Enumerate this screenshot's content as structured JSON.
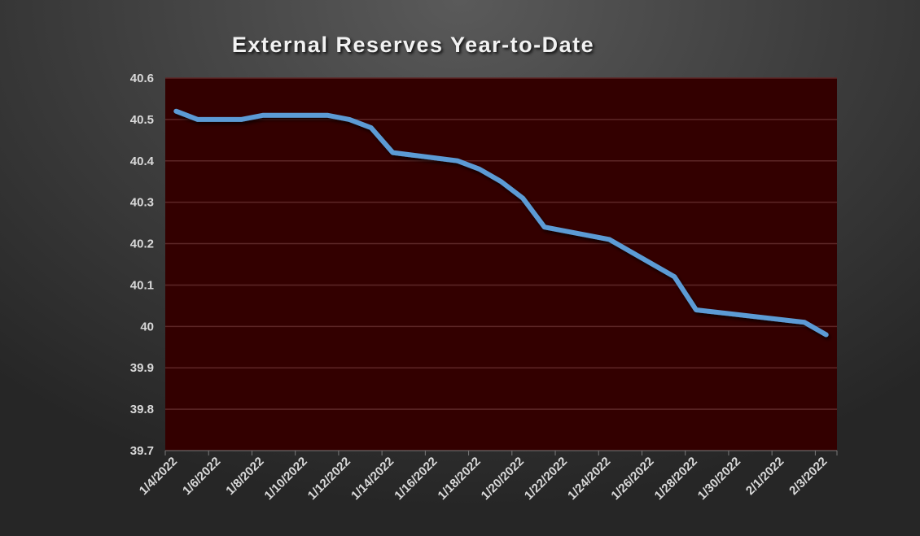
{
  "chart_data": {
    "type": "line",
    "title": "External Reserves Year-to-Date",
    "xlabel": "",
    "ylabel": "",
    "ylim": [
      39.7,
      40.6
    ],
    "yticks": [
      "40.6",
      "40.5",
      "40.4",
      "40.3",
      "40.2",
      "40.1",
      "40",
      "39.9",
      "39.8",
      "39.7"
    ],
    "xlim": [
      "1/4/2022",
      "2/3/2022"
    ],
    "xticks": [
      "1/4/2022",
      "1/6/2022",
      "1/8/2022",
      "1/10/2022",
      "1/12/2022",
      "1/14/2022",
      "1/16/2022",
      "1/18/2022",
      "1/20/2022",
      "1/22/2022",
      "1/24/2022",
      "1/26/2022",
      "1/28/2022",
      "1/30/2022",
      "2/1/2022",
      "2/3/2022"
    ],
    "grid": true,
    "legend": "none",
    "colors": {
      "line": "#5b9bd5",
      "plot_background": "#330000",
      "gridline": "#5c2626",
      "text": "#d9d9d9"
    },
    "series": [
      {
        "x": [
          "1/4/2022",
          "1/5/2022",
          "1/7/2022",
          "1/8/2022",
          "1/11/2022",
          "1/12/2022",
          "1/13/2022",
          "1/14/2022",
          "1/17/2022",
          "1/18/2022",
          "1/19/2022",
          "1/20/2022",
          "1/21/2022",
          "1/24/2022",
          "1/25/2022",
          "1/26/2022",
          "1/27/2022",
          "1/28/2022",
          "2/2/2022",
          "2/3/2022"
        ],
        "values": [
          40.52,
          40.5,
          40.5,
          40.51,
          40.51,
          40.5,
          40.48,
          40.42,
          40.4,
          40.38,
          40.35,
          40.31,
          40.24,
          40.21,
          40.18,
          40.15,
          40.12,
          40.04,
          40.01,
          39.98
        ]
      }
    ]
  }
}
